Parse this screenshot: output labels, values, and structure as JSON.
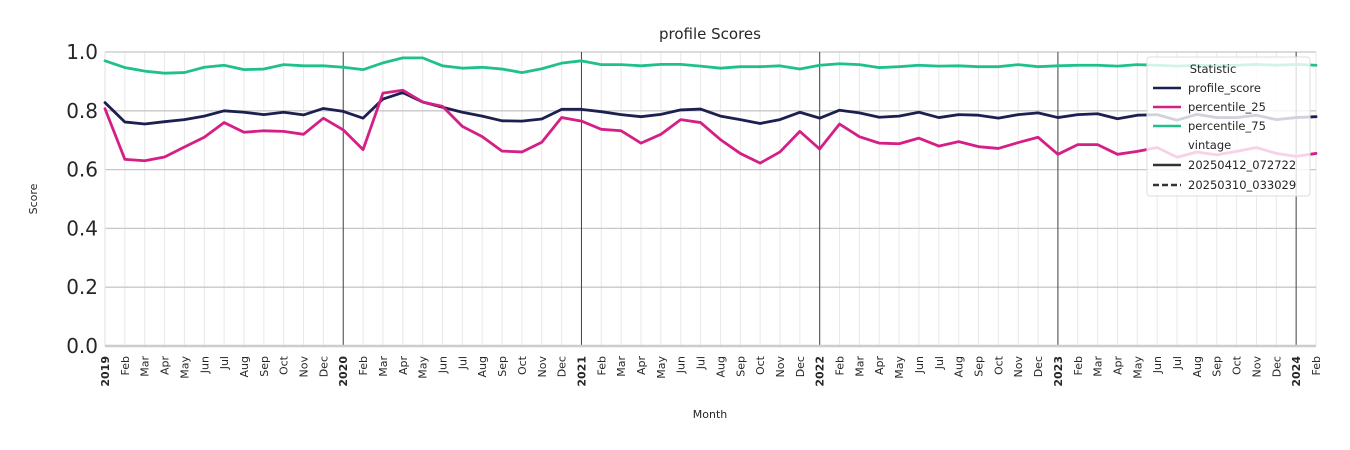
{
  "chart_data": {
    "type": "line",
    "title": "profile Scores",
    "xlabel": "Month",
    "ylabel": "Score",
    "ylim": [
      0.0,
      1.0
    ],
    "yticks": [
      "0.0",
      "0.2",
      "0.4",
      "0.6",
      "0.8",
      "1.0"
    ],
    "grid": true,
    "legend_position": "top-right",
    "categories": [
      "2019",
      "Feb",
      "Mar",
      "Apr",
      "May",
      "Jun",
      "Jul",
      "Aug",
      "Sep",
      "Oct",
      "Nov",
      "Dec",
      "2020",
      "Feb",
      "Mar",
      "Apr",
      "May",
      "Jun",
      "Jul",
      "Aug",
      "Sep",
      "Oct",
      "Nov",
      "Dec",
      "2021",
      "Feb",
      "Mar",
      "Apr",
      "May",
      "Jun",
      "Jul",
      "Aug",
      "Sep",
      "Oct",
      "Nov",
      "Dec",
      "2022",
      "Feb",
      "Mar",
      "Apr",
      "May",
      "Jun",
      "Jul",
      "Aug",
      "Sep",
      "Oct",
      "Nov",
      "Dec",
      "2023",
      "Feb",
      "Mar",
      "Apr",
      "May",
      "Jun",
      "Jul",
      "Aug",
      "Sep",
      "Oct",
      "Nov",
      "Dec",
      "2024",
      "Feb"
    ],
    "year_markers": [
      "2020",
      "2021",
      "2022",
      "2023",
      "2024"
    ],
    "series": [
      {
        "name": "profile_score",
        "vintage": "20250412_072722",
        "color": "#1c1f50",
        "values": [
          0.828,
          0.762,
          0.755,
          0.763,
          0.77,
          0.782,
          0.8,
          0.795,
          0.787,
          0.795,
          0.786,
          0.808,
          0.798,
          0.775,
          0.84,
          0.862,
          0.83,
          0.812,
          0.795,
          0.782,
          0.766,
          0.765,
          0.772,
          0.805,
          0.805,
          0.797,
          0.787,
          0.78,
          0.788,
          0.803,
          0.806,
          0.782,
          0.77,
          0.757,
          0.77,
          0.795,
          0.775,
          0.802,
          0.793,
          0.778,
          0.782,
          0.795,
          0.777,
          0.787,
          0.785,
          0.775,
          0.787,
          0.793,
          0.777,
          0.787,
          0.79,
          0.773,
          0.785,
          0.787,
          0.768,
          0.788,
          0.777,
          0.777,
          0.785,
          0.77,
          0.777,
          0.78
        ]
      },
      {
        "name": "percentile_25",
        "vintage": "20250412_072722",
        "color": "#d41f86",
        "values": [
          0.807,
          0.635,
          0.63,
          0.643,
          0.677,
          0.71,
          0.76,
          0.727,
          0.732,
          0.73,
          0.72,
          0.775,
          0.735,
          0.668,
          0.86,
          0.87,
          0.83,
          0.815,
          0.747,
          0.712,
          0.663,
          0.66,
          0.693,
          0.777,
          0.765,
          0.737,
          0.732,
          0.69,
          0.72,
          0.77,
          0.76,
          0.702,
          0.655,
          0.622,
          0.66,
          0.73,
          0.67,
          0.755,
          0.712,
          0.69,
          0.688,
          0.707,
          0.68,
          0.695,
          0.678,
          0.672,
          0.692,
          0.71,
          0.652,
          0.685,
          0.685,
          0.652,
          0.662,
          0.675,
          0.642,
          0.66,
          0.65,
          0.662,
          0.675,
          0.655,
          0.645,
          0.655
        ]
      },
      {
        "name": "percentile_75",
        "vintage": "20250412_072722",
        "color": "#20c08e",
        "values": [
          0.97,
          0.947,
          0.935,
          0.928,
          0.93,
          0.948,
          0.955,
          0.94,
          0.942,
          0.957,
          0.953,
          0.953,
          0.948,
          0.94,
          0.963,
          0.98,
          0.98,
          0.953,
          0.945,
          0.948,
          0.942,
          0.93,
          0.943,
          0.962,
          0.97,
          0.957,
          0.957,
          0.953,
          0.958,
          0.958,
          0.952,
          0.945,
          0.95,
          0.95,
          0.953,
          0.942,
          0.955,
          0.96,
          0.957,
          0.947,
          0.95,
          0.955,
          0.952,
          0.953,
          0.95,
          0.95,
          0.957,
          0.95,
          0.953,
          0.955,
          0.955,
          0.952,
          0.957,
          0.955,
          0.952,
          0.955,
          0.953,
          0.955,
          0.958,
          0.955,
          0.958,
          0.955
        ]
      }
    ],
    "legend": {
      "title": "Statistic",
      "subtitle": "vintage",
      "vintages": [
        "20250412_072722",
        "20250310_033029"
      ]
    }
  }
}
